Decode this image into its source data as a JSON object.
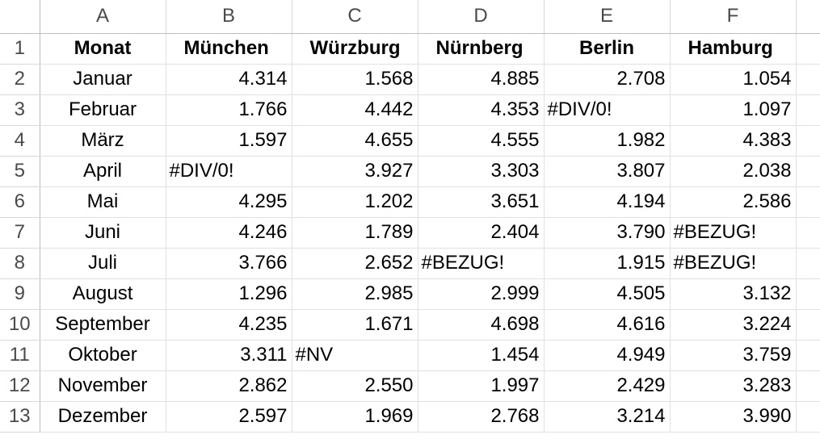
{
  "sheet": {
    "column_headers": [
      "A",
      "B",
      "C",
      "D",
      "E",
      "F"
    ],
    "row_numbers": [
      "1",
      "2",
      "3",
      "4",
      "5",
      "6",
      "7",
      "8",
      "9",
      "10",
      "11",
      "12",
      "13"
    ],
    "header_row": [
      "Monat",
      "München",
      "Würzburg",
      "Nürnberg",
      "Berlin",
      "Hamburg"
    ],
    "rows": [
      [
        "Januar",
        "4.314",
        "1.568",
        "4.885",
        "2.708",
        "1.054"
      ],
      [
        "Februar",
        "1.766",
        "4.442",
        "4.353",
        "#DIV/0!",
        "1.097"
      ],
      [
        "März",
        "1.597",
        "4.655",
        "4.555",
        "1.982",
        "4.383"
      ],
      [
        "April",
        "#DIV/0!",
        "3.927",
        "3.303",
        "3.807",
        "2.038"
      ],
      [
        "Mai",
        "4.295",
        "1.202",
        "3.651",
        "4.194",
        "2.586"
      ],
      [
        "Juni",
        "4.246",
        "1.789",
        "2.404",
        "3.790",
        "#BEZUG!"
      ],
      [
        "Juli",
        "3.766",
        "2.652",
        "#BEZUG!",
        "1.915",
        "#BEZUG!"
      ],
      [
        "August",
        "1.296",
        "2.985",
        "2.999",
        "4.505",
        "3.132"
      ],
      [
        "September",
        "4.235",
        "1.671",
        "4.698",
        "4.616",
        "3.224"
      ],
      [
        "Oktober",
        "3.311",
        "#NV",
        "1.454",
        "4.949",
        "3.759"
      ],
      [
        "November",
        "2.862",
        "2.550",
        "1.997",
        "2.429",
        "3.283"
      ],
      [
        "Dezember",
        "2.597",
        "1.969",
        "2.768",
        "3.214",
        "3.990"
      ]
    ]
  }
}
